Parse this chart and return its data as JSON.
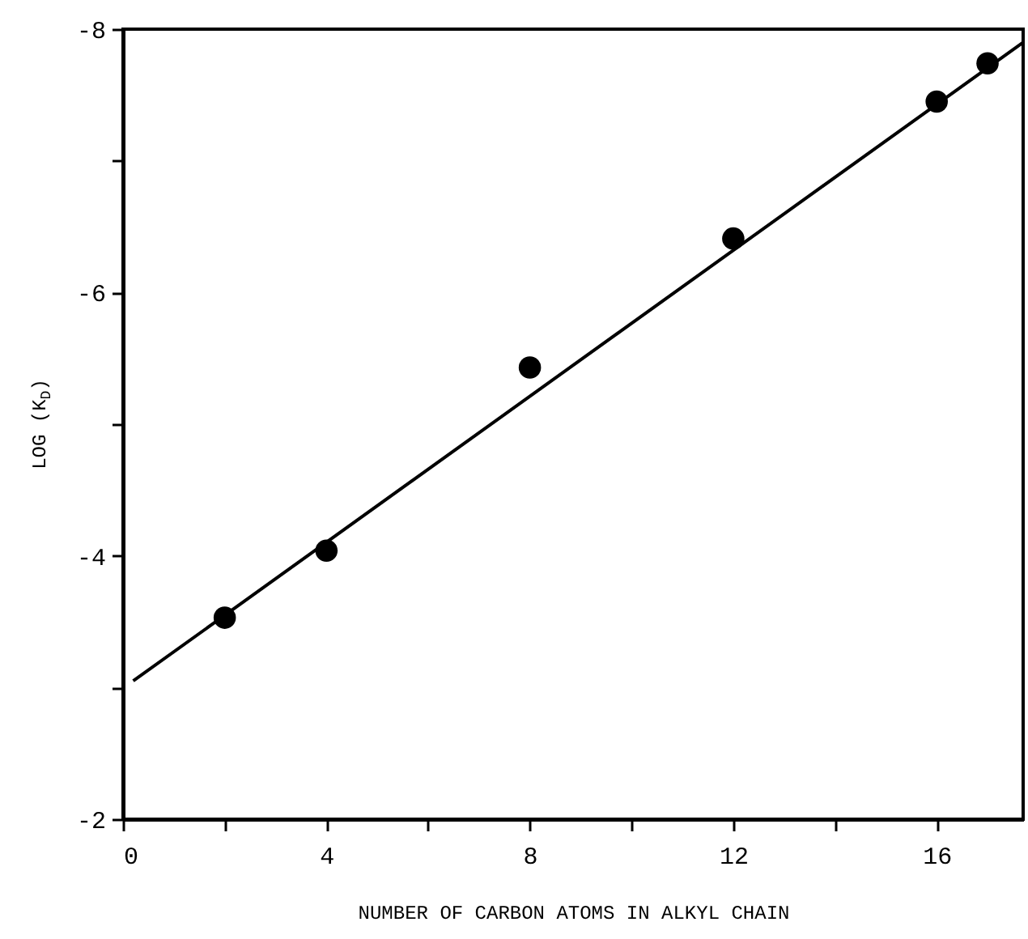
{
  "chart_data": {
    "type": "scatter",
    "xlabel": "NUMBER OF CARBON ATOMS IN ALKYL CHAIN",
    "ylabel": "LOG (K$_{D}$)",
    "series": [
      {
        "color": "#000000",
        "x": [
          2,
          4,
          8,
          12,
          16,
          17
        ],
        "values": [
          -3.53,
          -4.04,
          -5.43,
          -6.41,
          -7.45,
          -7.74
        ],
        "marker": "circle"
      },
      {
        "type": "line",
        "color": "#000000",
        "x": [
          0.2,
          17.7
        ],
        "values": [
          -3.05,
          -7.9
        ],
        "marker": "none",
        "line_style": "solid"
      }
    ],
    "xlim": [
      0,
      17.7
    ],
    "xticks": [
      0,
      {
        "value": 2,
        "label": null
      },
      4,
      {
        "value": 6,
        "label": null
      },
      8,
      {
        "value": 10,
        "label": null
      },
      12,
      {
        "value": 14,
        "label": null
      },
      16
    ],
    "ylim": [
      -2,
      -8
    ],
    "yticks": [
      -2,
      {
        "value": -3,
        "label": null
      },
      -4,
      {
        "value": -5,
        "label": null
      },
      -6,
      {
        "value": -7,
        "label": null
      },
      -8
    ],
    "grid": false
  }
}
